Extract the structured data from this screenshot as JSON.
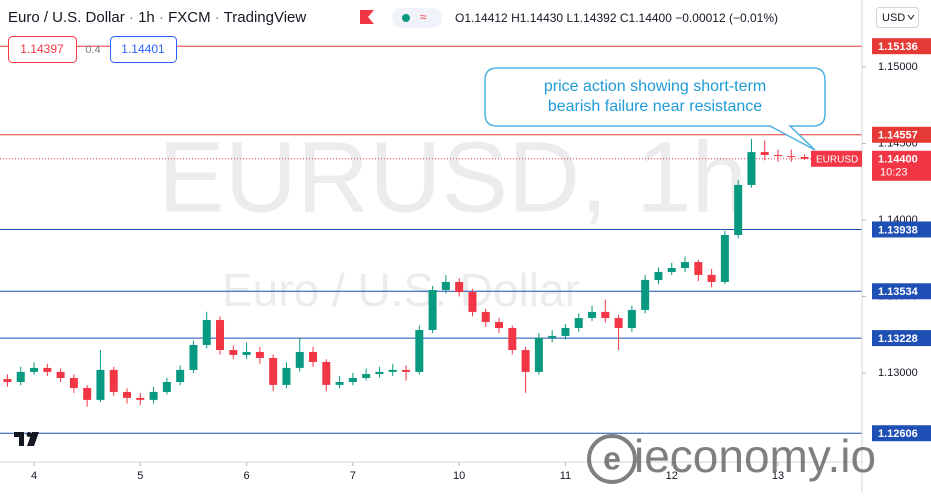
{
  "chart_data": {
    "type": "candlestick",
    "header": {
      "title_parts": [
        "Euro / U.S. Dollar",
        "1h",
        "FXCM",
        "TradingView"
      ],
      "ohlc": [
        "O1.14412",
        "H1.14430",
        "L1.14392",
        "C1.14400",
        "−0.00012 (−0.01%)"
      ],
      "bid": "1.14397",
      "spread": "0.4",
      "ask": "1.14401",
      "currency": "USD"
    },
    "watermark": [
      "EURUSD, 1h",
      "Euro / U.S. Dollar"
    ],
    "annotation": [
      "price action showing short-term",
      "bearish failure near resistance"
    ],
    "symbol": "EURUSD",
    "last_price": {
      "value": 1.144,
      "label": "1.14400"
    },
    "countdown": "10:23",
    "brand": "ieconomy.io",
    "up_color": "#089981",
    "down_color": "#f23645",
    "xlim": [
      -0.32,
      7.79
    ],
    "xticks": [
      {
        "value": 0,
        "label": "4"
      },
      {
        "value": 1,
        "label": "5"
      },
      {
        "value": 2,
        "label": "6"
      },
      {
        "value": 3,
        "label": "7"
      },
      {
        "value": 4,
        "label": "10"
      },
      {
        "value": 5,
        "label": "11"
      },
      {
        "value": 6,
        "label": "12"
      },
      {
        "value": 7,
        "label": "13"
      }
    ],
    "ylim": [
      1.12418,
      1.15438
    ],
    "yticks": [
      {
        "value": 1.15,
        "label": "1.15000"
      },
      {
        "value": 1.145,
        "label": "1.14500"
      },
      {
        "value": 1.14,
        "label": "1.14000"
      },
      {
        "value": 1.135,
        "label": "1.13500"
      },
      {
        "value": 1.13,
        "label": "1.13000"
      }
    ],
    "levels": [
      {
        "value": 1.15136,
        "color": "#e53935"
      },
      {
        "value": 1.14557,
        "color": "#e53935"
      },
      {
        "value": 1.13938,
        "color": "#1e4fb4"
      },
      {
        "value": 1.13534,
        "color": "#1e4fb4"
      },
      {
        "value": 1.13228,
        "color": "#1e4fb4"
      },
      {
        "value": 1.12606,
        "color": "#1e4fb4"
      }
    ],
    "x": [
      -0.25,
      -0.125,
      0,
      0.125,
      0.25,
      0.375,
      0.5,
      0.625,
      0.75,
      0.875,
      1,
      1.125,
      1.25,
      1.375,
      1.5,
      1.625,
      1.75,
      1.875,
      2,
      2.125,
      2.25,
      2.375,
      2.5,
      2.625,
      2.75,
      2.875,
      3,
      3.125,
      3.25,
      3.375,
      3.5,
      3.625,
      3.75,
      3.875,
      4,
      4.125,
      4.25,
      4.375,
      4.5,
      4.625,
      4.75,
      4.875,
      5,
      5.125,
      5.25,
      5.375,
      5.5,
      5.625,
      5.75,
      5.875,
      6,
      6.125,
      6.25,
      6.375,
      6.5,
      6.625,
      6.75,
      6.875,
      7,
      7.125,
      7.25
    ],
    "open": [
      1.1296,
      1.12941,
      1.13007,
      1.13033,
      1.13007,
      1.12967,
      1.12902,
      1.12824,
      1.1302,
      1.12876,
      1.12837,
      1.12824,
      1.12876,
      1.12941,
      1.1302,
      1.13183,
      1.13346,
      1.1315,
      1.13118,
      1.13137,
      1.13098,
      1.12922,
      1.13033,
      1.13137,
      1.13072,
      1.12922,
      1.12941,
      1.12967,
      1.12993,
      1.13007,
      1.1302,
      1.13007,
      1.13281,
      1.13542,
      1.13595,
      1.13529,
      1.13399,
      1.13333,
      1.13294,
      1.1315,
      1.13007,
      1.13229,
      1.13242,
      1.13294,
      1.13359,
      1.13399,
      1.13359,
      1.13294,
      1.13412,
      1.13608,
      1.1366,
      1.13686,
      1.13725,
      1.13641,
      1.13595,
      1.13902,
      1.14229,
      1.14444,
      1.14425,
      1.14418,
      1.14412
    ],
    "high": [
      1.1299,
      1.1304,
      1.1307,
      1.1306,
      1.1303,
      1.1299,
      1.1292,
      1.1315,
      1.1304,
      1.129,
      1.1287,
      1.1291,
      1.1297,
      1.1305,
      1.1321,
      1.134,
      1.1337,
      1.1318,
      1.132,
      1.1317,
      1.1312,
      1.1307,
      1.1323,
      1.1317,
      1.1309,
      1.1298,
      1.13,
      1.1303,
      1.1304,
      1.1306,
      1.1305,
      1.1331,
      1.1357,
      1.1364,
      1.1362,
      1.1355,
      1.1342,
      1.1336,
      1.1331,
      1.1317,
      1.1326,
      1.1328,
      1.1332,
      1.1339,
      1.1344,
      1.1348,
      1.1338,
      1.1344,
      1.1364,
      1.1369,
      1.1372,
      1.1376,
      1.1374,
      1.1368,
      1.1393,
      1.1426,
      1.1453,
      1.1452,
      1.1446,
      1.1446,
      1.1443
    ],
    "low": [
      1.1291,
      1.1292,
      1.1299,
      1.1298,
      1.1294,
      1.1287,
      1.1278,
      1.1281,
      1.1285,
      1.128,
      1.1279,
      1.128,
      1.1286,
      1.1292,
      1.13,
      1.1316,
      1.1312,
      1.1309,
      1.1309,
      1.1306,
      1.1288,
      1.129,
      1.1301,
      1.1304,
      1.1288,
      1.129,
      1.1292,
      1.1295,
      1.1297,
      1.1298,
      1.1295,
      1.1299,
      1.1326,
      1.1352,
      1.135,
      1.1337,
      1.133,
      1.1326,
      1.1312,
      1.1287,
      1.1299,
      1.132,
      1.1322,
      1.1327,
      1.1334,
      1.1333,
      1.1315,
      1.1327,
      1.1339,
      1.1358,
      1.1364,
      1.1366,
      1.136,
      1.1356,
      1.1358,
      1.1388,
      1.1421,
      1.1439,
      1.1438,
      1.1438,
      1.14392
    ],
    "close": [
      1.12941,
      1.13007,
      1.13033,
      1.13007,
      1.12967,
      1.12902,
      1.12824,
      1.1302,
      1.12876,
      1.12837,
      1.12824,
      1.12876,
      1.12941,
      1.1302,
      1.13183,
      1.13346,
      1.1315,
      1.13118,
      1.13137,
      1.13098,
      1.12922,
      1.13033,
      1.13137,
      1.13072,
      1.12922,
      1.12941,
      1.12967,
      1.12993,
      1.13007,
      1.1302,
      1.13007,
      1.13281,
      1.13542,
      1.13595,
      1.13529,
      1.13399,
      1.13333,
      1.13294,
      1.1315,
      1.13007,
      1.13229,
      1.13242,
      1.13294,
      1.13359,
      1.13399,
      1.13359,
      1.13294,
      1.13412,
      1.13608,
      1.1366,
      1.13686,
      1.13725,
      1.13641,
      1.13595,
      1.13902,
      1.14229,
      1.14444,
      1.14425,
      1.14418,
      1.14412,
      1.144
    ]
  }
}
